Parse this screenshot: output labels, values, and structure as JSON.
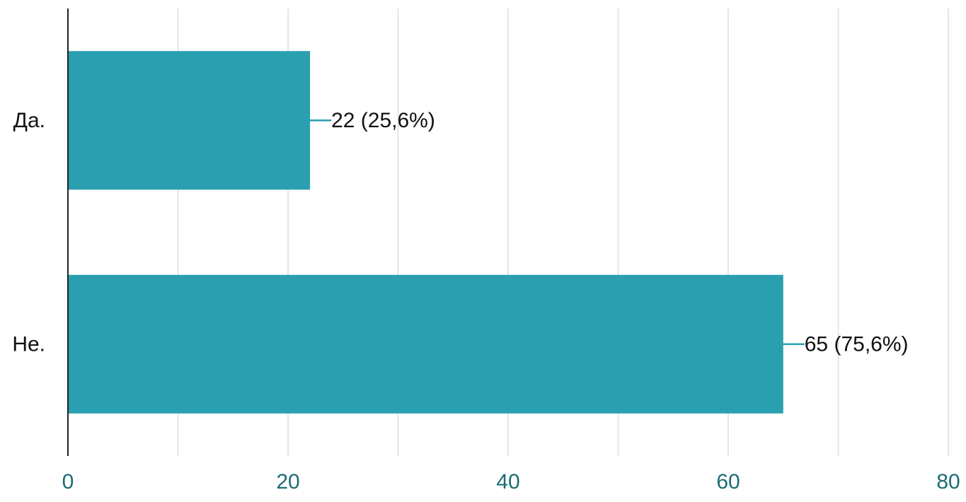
{
  "chart_data": {
    "type": "bar",
    "orientation": "horizontal",
    "categories": [
      "Да.",
      "Не."
    ],
    "values": [
      22,
      65
    ],
    "value_labels": [
      "22 (25,6%)",
      "65 (75,6%)"
    ],
    "xlim": [
      0,
      80
    ],
    "x_ticks": [
      0,
      20,
      40,
      60,
      80
    ],
    "x_tick_labels": [
      "0",
      "20",
      "40",
      "60",
      "80"
    ],
    "minor_grid_step": 10,
    "grid": true,
    "legend": "none",
    "title": "",
    "xlabel": "",
    "ylabel": ""
  },
  "colors": {
    "bar": "#2a9fb0",
    "grid": "#dfe8ea",
    "axis": "#222222",
    "tick_text": "#1d6b74",
    "label_text": "#111111",
    "leader": "#2a9fb0"
  }
}
